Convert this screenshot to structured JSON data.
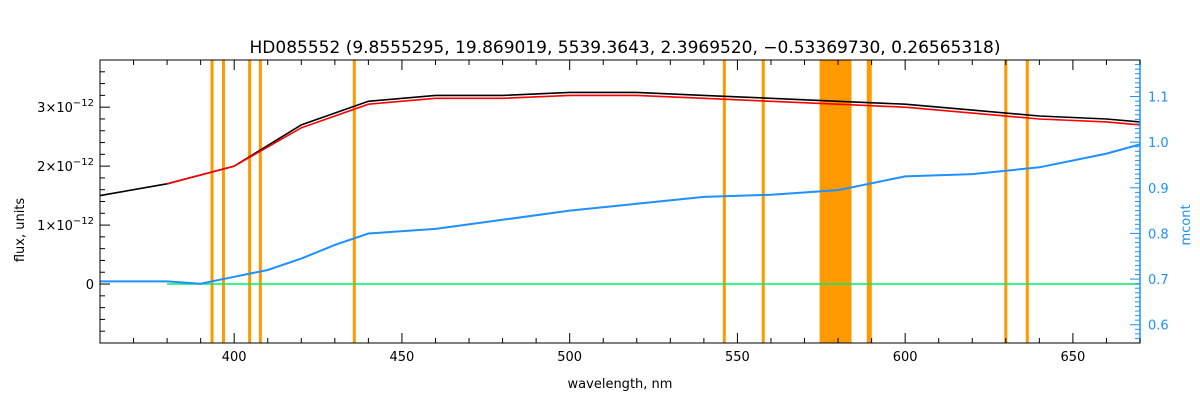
{
  "chart_data": {
    "type": "line",
    "title": "HD085552    (9.8555295, 19.869019, 5539.3643, 2.3969520, −0.53369730, 0.26565318)",
    "xlabel": "wavelength, nm",
    "ylabel": "flux, units",
    "ylabel_right": "mcont",
    "xlim": [
      360,
      670
    ],
    "ylim": [
      -1e-12,
      3.8e-12
    ],
    "ylim_right": [
      0.56,
      1.18
    ],
    "x_ticks": [
      400,
      450,
      500,
      550,
      600,
      650
    ],
    "x_tick_labels": [
      "400",
      "450",
      "500",
      "550",
      "600",
      "650"
    ],
    "y_ticks": [
      0,
      1e-12,
      2e-12,
      3e-12
    ],
    "y_tick_base": [
      "0",
      "1×10",
      "2×10",
      "3×10"
    ],
    "y_tick_exp": [
      "",
      "−12",
      "−12",
      "−12"
    ],
    "y_right_ticks": [
      0.6,
      0.7,
      0.8,
      0.9,
      1.0,
      1.1
    ],
    "y_right_tick_labels": [
      "0.6",
      "0.7",
      "0.8",
      "0.9",
      "1.0",
      "1.1"
    ],
    "masked_lines_nm": [
      393.4,
      396.8,
      404.6,
      407.8,
      435.8,
      546.1,
      557.7,
      589.0,
      589.6,
      630.0,
      636.4
    ],
    "masked_bands_nm": [
      [
        574.5,
        584.0
      ]
    ],
    "series": [
      {
        "color": "#000000",
        "x": [
          360,
          380,
          400,
          420,
          440,
          460,
          480,
          500,
          520,
          540,
          560,
          580,
          600,
          620,
          640,
          660,
          670
        ],
        "y": [
          1.5e-12,
          1.7e-12,
          2e-12,
          2.7e-12,
          3.1e-12,
          3.2e-12,
          3.2e-12,
          3.25e-12,
          3.25e-12,
          3.2e-12,
          3.15e-12,
          3.1e-12,
          3.05e-12,
          2.95e-12,
          2.85e-12,
          2.8e-12,
          2.75e-12
        ]
      },
      {
        "color": "#ff0000",
        "x": [
          380,
          400,
          420,
          440,
          460,
          480,
          500,
          520,
          540,
          560,
          580,
          600,
          620,
          640,
          660,
          670
        ],
        "y": [
          1.7e-12,
          2e-12,
          2.65e-12,
          3.05e-12,
          3.15e-12,
          3.15e-12,
          3.2e-12,
          3.2e-12,
          3.15e-12,
          3.1e-12,
          3.05e-12,
          3e-12,
          2.9e-12,
          2.8e-12,
          2.75e-12,
          2.7e-12
        ]
      },
      {
        "color": "#00ee66",
        "x": [
          380,
          420,
          460,
          500,
          540,
          580,
          620,
          670
        ],
        "y": [
          0.0,
          0.0,
          0.0,
          0.0,
          0.0,
          0.0,
          0.0,
          0.0
        ]
      },
      {
        "color": "#1e90ff",
        "axis": "right",
        "x": [
          360,
          380,
          390,
          400,
          410,
          420,
          430,
          440,
          460,
          480,
          500,
          520,
          540,
          560,
          580,
          600,
          620,
          640,
          660,
          670
        ],
        "y": [
          0.695,
          0.695,
          0.69,
          0.705,
          0.72,
          0.745,
          0.775,
          0.8,
          0.81,
          0.83,
          0.85,
          0.865,
          0.88,
          0.885,
          0.895,
          0.925,
          0.93,
          0.945,
          0.975,
          0.995
        ]
      }
    ]
  }
}
